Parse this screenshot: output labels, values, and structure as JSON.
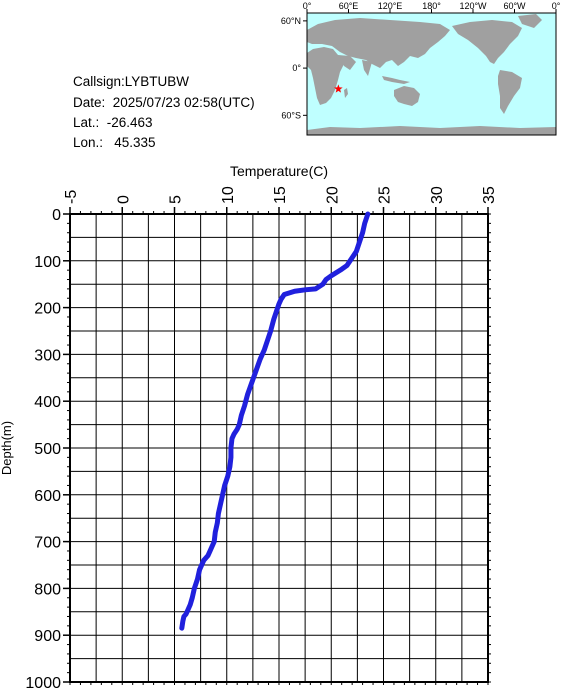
{
  "station": {
    "callsign": "Callsign:LYBTUBW",
    "date": "Date:  2025/07/23 02:58(UTC)",
    "lat": "Lat.:  -26.463",
    "lon": "Lon.:   45.335"
  },
  "map": {
    "lon_labels": [
      "0°",
      "60°E",
      "120°E",
      "180°",
      "120°W",
      "60°W",
      "0°"
    ],
    "lat_labels": [
      "60°N",
      "0°",
      "60°S"
    ],
    "marker": {
      "lon": 45.335,
      "lat": -26.463
    },
    "colors": {
      "ocean": "#bfffff",
      "land": "#a0a0a0",
      "marker": "#ff0000"
    }
  },
  "chart_data": {
    "type": "line",
    "title": "",
    "xlabel": "Temperature(C)",
    "ylabel": "Depth(m)",
    "xlim": [
      -5,
      35
    ],
    "ylim": [
      1000,
      0
    ],
    "x_ticks": [
      -5,
      0,
      5,
      10,
      15,
      20,
      25,
      30,
      35
    ],
    "y_ticks": [
      0,
      100,
      200,
      300,
      400,
      500,
      600,
      700,
      800,
      900,
      1000
    ],
    "grid": true,
    "series": [
      {
        "color": "#2020dd",
        "x": [
          23.5,
          23.2,
          23.0,
          22.7,
          22.4,
          22.1,
          21.8,
          21.5,
          21.0,
          20.5,
          20.0,
          19.5,
          19.2,
          18.5,
          17.5,
          16.5,
          15.5,
          15.2,
          15.0,
          14.8,
          14.5,
          14.2,
          13.9,
          13.6,
          13.2,
          12.8,
          12.4,
          12.0,
          11.7,
          11.4,
          11.2,
          11.0,
          10.7,
          10.5,
          10.4,
          10.4,
          10.3,
          10.1,
          9.8,
          9.6,
          9.4,
          9.2,
          9.1,
          8.9,
          8.8,
          8.6,
          8.4,
          8.2,
          7.8,
          7.4,
          7.2,
          6.9,
          6.7,
          6.5,
          6.3,
          6.1,
          5.9,
          5.8,
          5.7
        ],
        "y": [
          0,
          20,
          40,
          60,
          80,
          90,
          100,
          110,
          118,
          125,
          132,
          140,
          150,
          160,
          162,
          165,
          172,
          182,
          192,
          205,
          225,
          250,
          270,
          290,
          310,
          335,
          360,
          385,
          410,
          430,
          450,
          460,
          470,
          480,
          500,
          520,
          540,
          560,
          580,
          600,
          620,
          640,
          660,
          680,
          700,
          710,
          720,
          730,
          740,
          760,
          780,
          800,
          820,
          835,
          845,
          855,
          860,
          870,
          885
        ]
      }
    ]
  }
}
